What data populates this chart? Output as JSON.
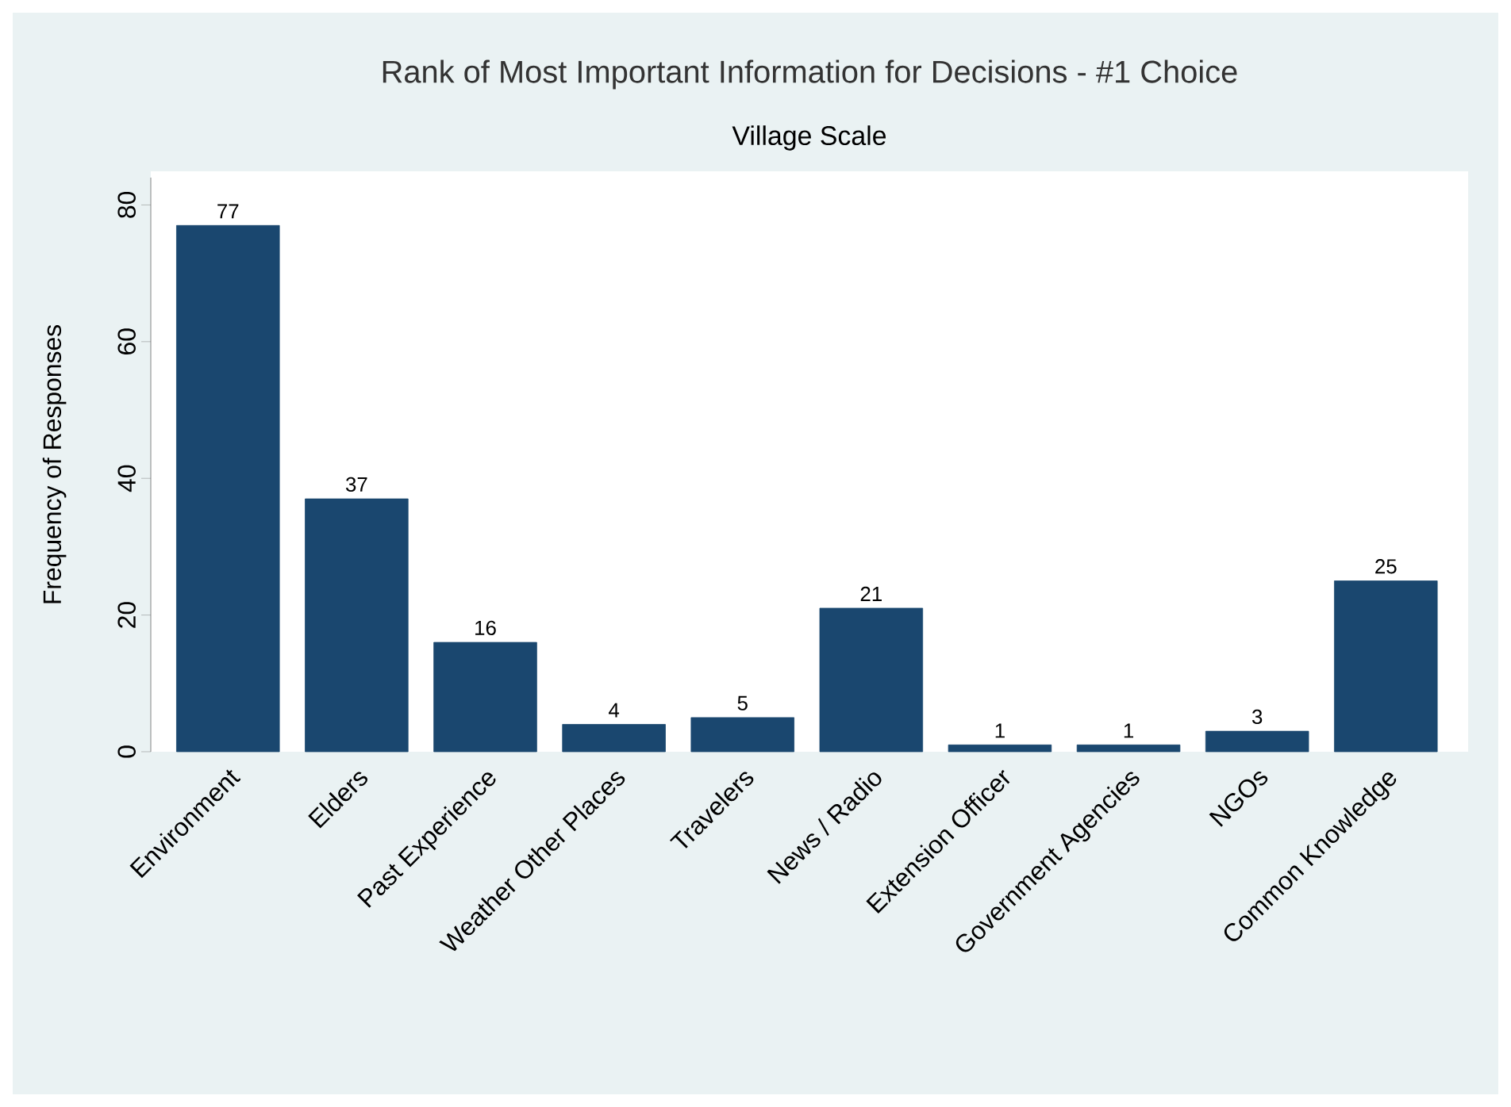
{
  "chart_data": {
    "type": "bar",
    "title": "Rank of Most Important Information for Decisions - #1 Choice",
    "subtitle": "Village Scale",
    "ylabel": "Frequency of Responses",
    "categories": [
      "Environment",
      "Elders",
      "Past Experience",
      "Weather Other Places",
      "Travelers",
      "News / Radio",
      "Extension Officer",
      "Government Agencies",
      "NGOs",
      "Common Knowledge"
    ],
    "values": [
      77,
      37,
      16,
      4,
      5,
      21,
      1,
      1,
      3,
      25
    ],
    "color": "#1a476f",
    "ylim": [
      0,
      84
    ],
    "yticks": [
      0,
      20,
      40,
      60,
      80
    ],
    "data_labels": true
  }
}
